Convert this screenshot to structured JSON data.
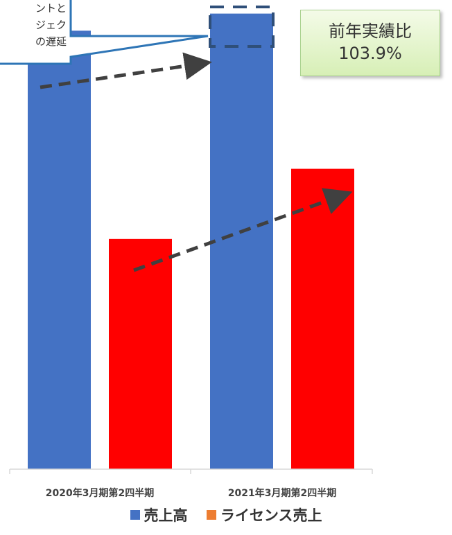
{
  "chart_data": {
    "type": "bar",
    "categories": [
      "2020年3月期第2四半期",
      "2021年3月期第2四半期"
    ],
    "series": [
      {
        "name": "売上高",
        "values": [
          100,
          103.9
        ]
      },
      {
        "name": "ライセンス売上",
        "values": [
          52.5,
          68.5
        ]
      }
    ],
    "ylim": [
      0,
      107
    ],
    "grid": false,
    "legend": "bottom",
    "colors": {
      "売上高": "#4472c4",
      "ライセンス売上_bars": "#ff0000",
      "ライセンス売上_legend": "#ed7d31",
      "arrow": "#404040",
      "callout_border": "#2e75b6",
      "dashed_box": "#2f4f79"
    },
    "annotations": {
      "callout_lines": [
        "ントと",
        "ジェク",
        "の遅延"
      ],
      "ratio_label": "前年実績比",
      "ratio_value": "103.9%"
    }
  }
}
